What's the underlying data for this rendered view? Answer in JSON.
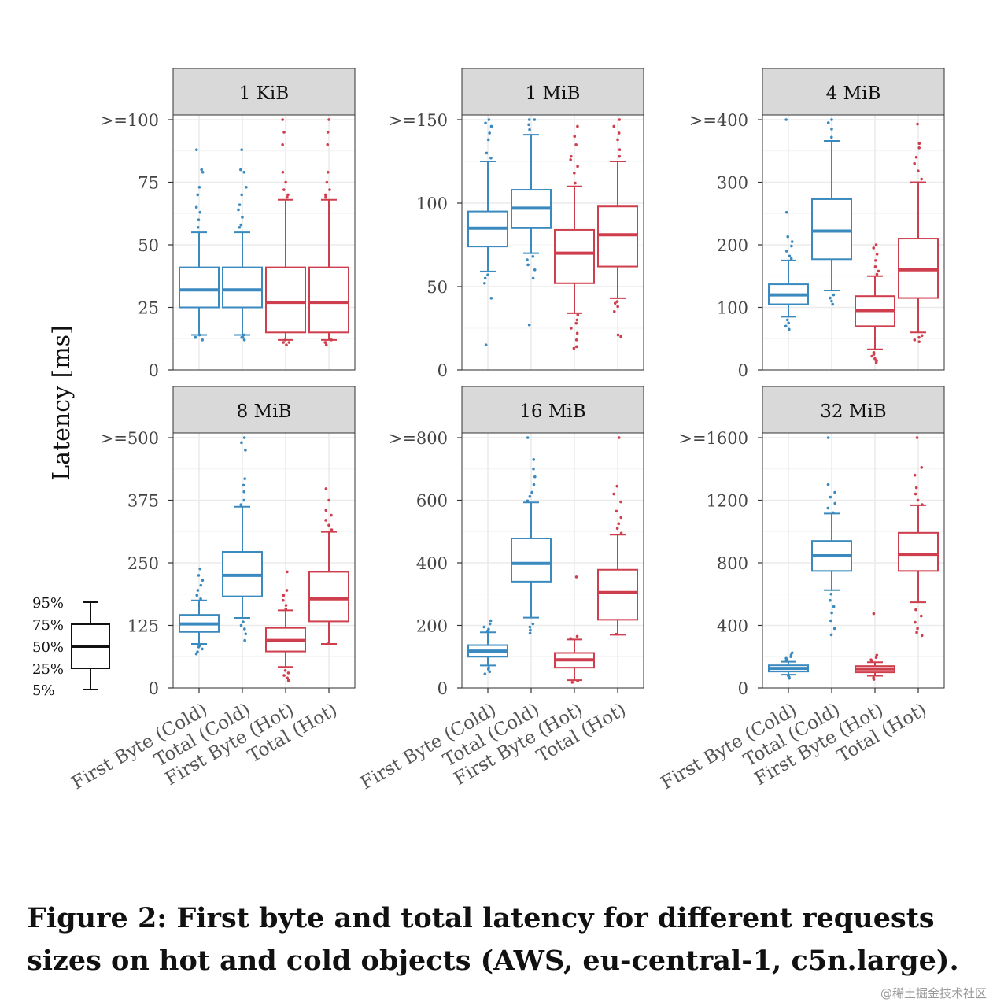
{
  "chart_data": {
    "type": "box",
    "ylabel": "Latency [ms]",
    "categories": [
      "First Byte (Cold)",
      "Total (Cold)",
      "First Byte (Hot)",
      "Total (Hot)"
    ],
    "colors": {
      "cold": "#3a8abf",
      "hot": "#cf3e4c"
    },
    "legend": {
      "labels": [
        "95%",
        "75%",
        "50%",
        "25%",
        "5%"
      ],
      "placement": "left"
    },
    "panels": [
      {
        "title": "1 KiB",
        "ylim": [
          0,
          100
        ],
        "ticks": [
          0,
          25,
          50,
          75,
          100
        ],
        "tick_labels": [
          "0",
          "25",
          "50",
          "75",
          ">=100"
        ],
        "boxes": [
          {
            "p5": 14,
            "q1": 25,
            "median": 32,
            "q3": 41,
            "p95": 55,
            "outliers": [
              13,
              12,
              13,
              14,
              57,
              60,
              63,
              65,
              70,
              73,
              79,
              80,
              88
            ]
          },
          {
            "p5": 14,
            "q1": 25,
            "median": 32,
            "q3": 41,
            "p95": 55,
            "outliers": [
              12,
              13,
              14,
              13,
              57,
              58,
              61,
              64,
              66,
              70,
              73,
              79,
              80,
              88
            ]
          },
          {
            "p5": 12,
            "q1": 15,
            "median": 27,
            "q3": 41,
            "p95": 68,
            "outliers": [
              10,
              11,
              12,
              11,
              69,
              70,
              72,
              75,
              79,
              90,
              95,
              100
            ]
          },
          {
            "p5": 12,
            "q1": 15,
            "median": 27,
            "q3": 41,
            "p95": 68,
            "outliers": [
              10,
              11,
              12,
              11,
              69,
              70,
              72,
              75,
              79,
              90,
              95,
              100
            ]
          }
        ]
      },
      {
        "title": "1 MiB",
        "ylim": [
          0,
          150
        ],
        "ticks": [
          0,
          50,
          100,
          150
        ],
        "tick_labels": [
          "0",
          "50",
          "100",
          ">=150"
        ],
        "boxes": [
          {
            "p5": 59,
            "q1": 74,
            "median": 85,
            "q3": 95,
            "p95": 125,
            "outliers": [
              15,
              43,
              52,
              55,
              57,
              127,
              130,
              138,
              142,
              146,
              148,
              150
            ]
          },
          {
            "p5": 70,
            "q1": 85,
            "median": 97,
            "q3": 108,
            "p95": 141,
            "outliers": [
              27,
              55,
              60,
              63,
              66,
              68,
              144,
              147,
              150,
              150
            ]
          },
          {
            "p5": 34,
            "q1": 52,
            "median": 70,
            "q3": 84,
            "p95": 110,
            "outliers": [
              13,
              14,
              18,
              22,
              25,
              28,
              30,
              33,
              112,
              118,
              122,
              126,
              128,
              135,
              140,
              146
            ]
          },
          {
            "p5": 43,
            "q1": 62,
            "median": 81,
            "q3": 98,
            "p95": 125,
            "outliers": [
              20,
              21,
              35,
              38,
              40,
              41,
              128,
              132,
              138,
              142,
              146,
              150
            ]
          }
        ]
      },
      {
        "title": "4 MiB",
        "ylim": [
          0,
          400
        ],
        "ticks": [
          0,
          100,
          200,
          300,
          400
        ],
        "tick_labels": [
          "0",
          "100",
          "200",
          "300",
          ">=400"
        ],
        "boxes": [
          {
            "p5": 85,
            "q1": 105,
            "median": 120,
            "q3": 137,
            "p95": 175,
            "outliers": [
              65,
              70,
              75,
              80,
              178,
              182,
              190,
              198,
              205,
              213,
              252,
              400
            ]
          },
          {
            "p5": 127,
            "q1": 177,
            "median": 222,
            "q3": 273,
            "p95": 366,
            "outliers": [
              105,
              110,
              115,
              120,
              372,
              385,
              395,
              400
            ]
          },
          {
            "p5": 33,
            "q1": 70,
            "median": 95,
            "q3": 118,
            "p95": 150,
            "outliers": [
              12,
              15,
              18,
              22,
              25,
              28,
              153,
              158,
              165,
              175,
              185,
              195,
              200
            ]
          },
          {
            "p5": 60,
            "q1": 115,
            "median": 160,
            "q3": 210,
            "p95": 300,
            "outliers": [
              45,
              48,
              52,
              55,
              305,
              318,
              330,
              340,
              355,
              362,
              393
            ]
          }
        ]
      },
      {
        "title": "8 MiB",
        "ylim": [
          0,
          500
        ],
        "ticks": [
          0,
          125,
          250,
          375,
          500
        ],
        "tick_labels": [
          "0",
          "125",
          "250",
          "375",
          ">=500"
        ],
        "boxes": [
          {
            "p5": 88,
            "q1": 112,
            "median": 128,
            "q3": 146,
            "p95": 175,
            "outliers": [
              68,
              72,
              78,
              82,
              85,
              178,
              185,
              195,
              205,
              215,
              225,
              238
            ]
          },
          {
            "p5": 140,
            "q1": 183,
            "median": 225,
            "q3": 272,
            "p95": 362,
            "outliers": [
              95,
              108,
              118,
              125,
              132,
              366,
              375,
              392,
              405,
              418,
              475,
              490,
              500
            ]
          },
          {
            "p5": 42,
            "q1": 73,
            "median": 95,
            "q3": 120,
            "p95": 155,
            "outliers": [
              15,
              20,
              25,
              30,
              35,
              158,
              165,
              175,
              185,
              195,
              232
            ]
          },
          {
            "p5": 88,
            "q1": 133,
            "median": 178,
            "q3": 232,
            "p95": 312,
            "outliers": [
              88,
              316,
              325,
              335,
              345,
              355,
              375,
              398
            ]
          }
        ]
      },
      {
        "title": "16 MiB",
        "ylim": [
          0,
          800
        ],
        "ticks": [
          0,
          200,
          400,
          600,
          800
        ],
        "tick_labels": [
          "0",
          "200",
          "400",
          "600",
          ">=800"
        ],
        "boxes": [
          {
            "p5": 72,
            "q1": 100,
            "median": 118,
            "q3": 137,
            "p95": 178,
            "outliers": [
              45,
              52,
              60,
              65,
              182,
              188,
              195,
              205,
              215
            ]
          },
          {
            "p5": 225,
            "q1": 340,
            "median": 398,
            "q3": 478,
            "p95": 593,
            "outliers": [
              175,
              185,
              195,
              205,
              598,
              612,
              625,
              650,
              675,
              700,
              730,
              800
            ]
          },
          {
            "p5": 25,
            "q1": 65,
            "median": 90,
            "q3": 112,
            "p95": 155,
            "outliers": [
              18,
              22,
              158,
              165,
              355
            ]
          },
          {
            "p5": 170,
            "q1": 218,
            "median": 305,
            "q3": 378,
            "p95": 490,
            "outliers": [
              172,
              495,
              510,
              525,
              545,
              565,
              595,
              620,
              645,
              800
            ]
          }
        ]
      },
      {
        "title": "32 MiB",
        "ylim": [
          0,
          1600
        ],
        "ticks": [
          0,
          400,
          800,
          1200,
          1600
        ],
        "tick_labels": [
          "0",
          "400",
          "800",
          "1200",
          ">=1600"
        ],
        "boxes": [
          {
            "p5": 85,
            "q1": 105,
            "median": 125,
            "q3": 145,
            "p95": 168,
            "outliers": [
              62,
              70,
              78,
              172,
              180,
              190,
              200,
              212,
              225
            ]
          },
          {
            "p5": 625,
            "q1": 748,
            "median": 845,
            "q3": 940,
            "p95": 1115,
            "outliers": [
              340,
              380,
              430,
              480,
              520,
              560,
              600,
              1120,
              1150,
              1180,
              1220,
              1250,
              1300,
              1600
            ]
          },
          {
            "p5": 78,
            "q1": 100,
            "median": 122,
            "q3": 140,
            "p95": 165,
            "outliers": [
              55,
              65,
              170,
              180,
              195,
              210,
              475
            ]
          },
          {
            "p5": 548,
            "q1": 748,
            "median": 855,
            "q3": 992,
            "p95": 1168,
            "outliers": [
              335,
              355,
              380,
              420,
              460,
              500,
              1172,
              1200,
              1240,
              1280,
              1360,
              1410,
              1600
            ]
          }
        ]
      }
    ]
  },
  "caption": {
    "line1": "Figure 2: First byte and total latency for different requests",
    "line2": "sizes on hot and cold objects (AWS, eu-central-1, c5n.large)."
  },
  "watermark": "@稀土掘金技术社区"
}
